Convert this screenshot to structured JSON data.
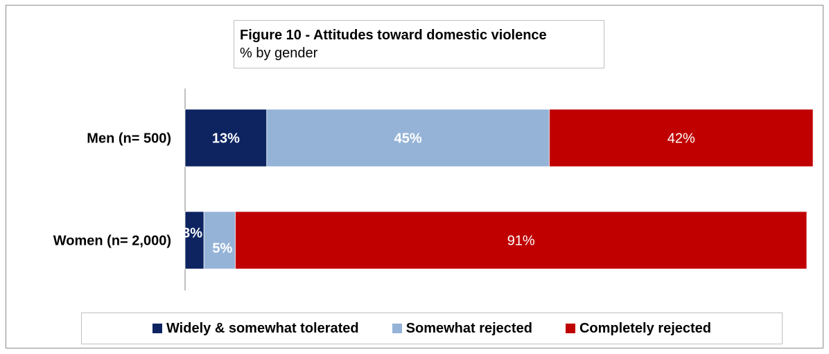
{
  "title": "Figure 10 - Attitudes toward domestic violence",
  "subtitle": "% by gender",
  "colors": {
    "tolerated": "#0d2461",
    "somewhat_rejected": "#95b3d7",
    "completely_rejected": "#c00000"
  },
  "chart_data": {
    "type": "bar",
    "orientation": "horizontal",
    "stacked": true,
    "categories": [
      "Men (n= 500)",
      "Women (n= 2,000)"
    ],
    "series": [
      {
        "name": "Widely & somewhat tolerated",
        "values": [
          13,
          3
        ],
        "labels": [
          "13%",
          "3%"
        ],
        "label_bold": true,
        "color": "#0d2461"
      },
      {
        "name": "Somewhat rejected",
        "values": [
          45,
          5
        ],
        "labels": [
          "45%",
          "5%"
        ],
        "label_bold": true,
        "color": "#95b3d7"
      },
      {
        "name": "Completely rejected",
        "values": [
          42,
          91
        ],
        "labels": [
          "42%",
          "91%"
        ],
        "label_bold": false,
        "color": "#c00000"
      }
    ],
    "xlim": [
      0,
      100
    ],
    "grid": false,
    "legend_position": "bottom"
  }
}
